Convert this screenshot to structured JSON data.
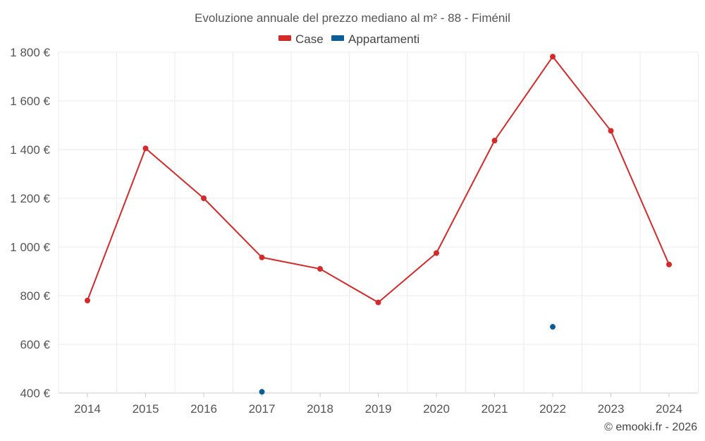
{
  "chart_data": {
    "type": "line",
    "title": "Evoluzione annuale del prezzo mediano al m² - 88 - Fiménil",
    "categories": [
      "2014",
      "2015",
      "2016",
      "2017",
      "2018",
      "2019",
      "2020",
      "2021",
      "2022",
      "2023",
      "2024"
    ],
    "series": [
      {
        "name": "Case",
        "color": "#d42a2a",
        "values": [
          780,
          1405,
          1200,
          957,
          910,
          772,
          975,
          1437,
          1782,
          1477,
          928
        ]
      },
      {
        "name": "Appartamenti",
        "color": "#0b5e9a",
        "values": [
          null,
          null,
          null,
          405,
          null,
          null,
          null,
          null,
          672,
          null,
          null
        ]
      }
    ],
    "ylim": [
      400,
      1800
    ],
    "yticks": [
      400,
      600,
      800,
      1000,
      1200,
      1400,
      1600,
      1800
    ],
    "ytick_labels": [
      "400 €",
      "600 €",
      "800 €",
      "1 000 €",
      "1 200 €",
      "1 400 €",
      "1 600 €",
      "1 800 €"
    ],
    "xlabel": "",
    "ylabel": "",
    "grid": true,
    "legend_position": "top-center"
  },
  "credit": "© emooki.fr - 2026"
}
